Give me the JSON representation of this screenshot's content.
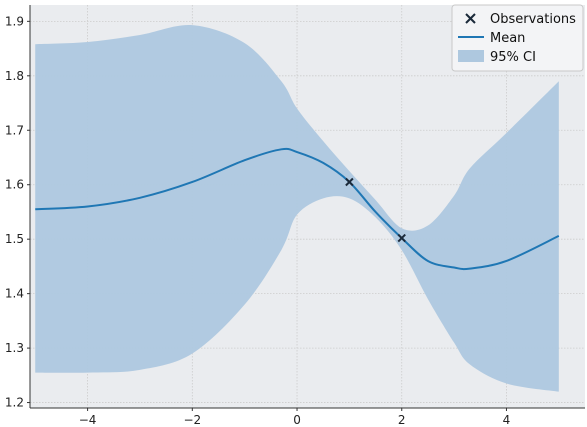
{
  "chart_data": {
    "type": "line",
    "title": "",
    "xlabel": "",
    "ylabel": "",
    "xlim": [
      -5.1,
      5.5
    ],
    "ylim": [
      1.19,
      1.93
    ],
    "grid": true,
    "legend_position": "top-right",
    "x_ticks": [
      -4,
      -2,
      0,
      2,
      4
    ],
    "y_ticks": [
      1.2,
      1.3,
      1.4,
      1.5,
      1.6,
      1.7,
      1.8,
      1.9
    ],
    "x_tick_labels": [
      "−4",
      "−2",
      "0",
      "2",
      "4"
    ],
    "y_tick_labels": [
      "1.2",
      "1.3",
      "1.4",
      "1.5",
      "1.6",
      "1.7",
      "1.8",
      "1.9"
    ],
    "legend": {
      "observations": "Observations",
      "mean": "Mean",
      "ci": "95% CI"
    },
    "colors": {
      "mean": "#1f77b4",
      "ci_fill": "#aec8df",
      "observation_marker": "#1b2a3a",
      "background": "#eaecef",
      "grid": "#cccccc"
    },
    "observations": [
      {
        "x": 1.0,
        "y": 1.605
      },
      {
        "x": 2.0,
        "y": 1.502
      }
    ],
    "x": [
      -5,
      -4,
      -3,
      -2,
      -1,
      -0.3,
      0,
      0.5,
      1,
      1.5,
      2,
      2.5,
      3,
      3.3,
      4,
      5
    ],
    "mean": [
      1.555,
      1.56,
      1.576,
      1.605,
      1.645,
      1.665,
      1.66,
      1.64,
      1.605,
      1.55,
      1.502,
      1.46,
      1.448,
      1.446,
      1.46,
      1.506
    ],
    "ci_upper": [
      1.858,
      1.862,
      1.875,
      1.893,
      1.86,
      1.79,
      1.74,
      1.68,
      1.625,
      1.572,
      1.52,
      1.525,
      1.58,
      1.63,
      1.695,
      1.79
    ],
    "ci_lower": [
      1.255,
      1.255,
      1.26,
      1.29,
      1.38,
      1.48,
      1.545,
      1.575,
      1.575,
      1.54,
      1.48,
      1.39,
      1.31,
      1.27,
      1.235,
      1.22
    ]
  }
}
